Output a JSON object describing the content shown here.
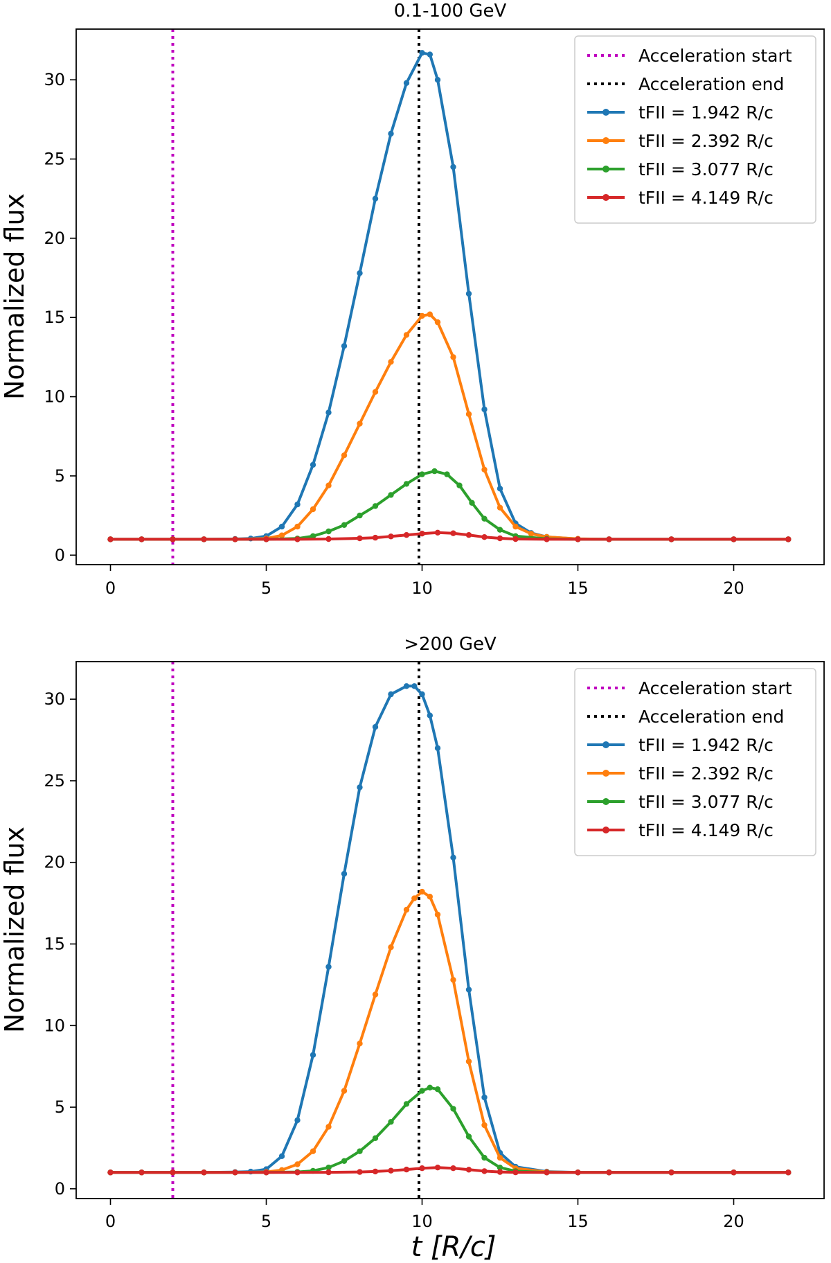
{
  "figure": {
    "shared_xlabel": "t [R/c]"
  },
  "chart_data": [
    {
      "type": "line",
      "title": "0.1-100 GeV",
      "xlabel": "t [R/c]",
      "ylabel": "Normalized flux",
      "xlim": [
        -1.1,
        22.9
      ],
      "ylim": [
        -0.6,
        33.2
      ],
      "xticks": [
        0,
        5,
        10,
        15,
        20
      ],
      "yticks": [
        0,
        5,
        10,
        15,
        20,
        25,
        30
      ],
      "grid": false,
      "legend_position": "top-right",
      "vlines": [
        {
          "name": "Acceleration start",
          "x": 2.0,
          "color": "#bf00bf",
          "style": "dotted"
        },
        {
          "name": "Acceleration end",
          "x": 9.9,
          "color": "#000000",
          "style": "dotted"
        }
      ],
      "series": [
        {
          "name": "tFII = 1.942 R/c",
          "color": "#1f77b4",
          "x": [
            0,
            1,
            2,
            3,
            4,
            4.5,
            5,
            5.5,
            6,
            6.5,
            7,
            7.5,
            8,
            8.5,
            9,
            9.5,
            10,
            10.25,
            10.5,
            11,
            11.5,
            12,
            12.5,
            13,
            13.5,
            14,
            15,
            16,
            18,
            20,
            21.75
          ],
          "values": [
            1,
            1,
            1,
            1,
            1.02,
            1.05,
            1.2,
            1.8,
            3.2,
            5.7,
            9.0,
            13.2,
            17.8,
            22.5,
            26.6,
            29.8,
            31.7,
            31.6,
            30.0,
            24.5,
            16.5,
            9.2,
            4.2,
            2.0,
            1.4,
            1.15,
            1.02,
            1,
            1,
            1,
            1
          ]
        },
        {
          "name": "tFII = 2.392 R/c",
          "color": "#ff7f0e",
          "x": [
            0,
            1,
            2,
            3,
            4,
            5,
            5.5,
            6,
            6.5,
            7,
            7.5,
            8,
            8.5,
            9,
            9.5,
            10,
            10.25,
            10.5,
            11,
            11.5,
            12,
            12.5,
            13,
            13.5,
            14,
            15,
            16,
            18,
            20,
            21.75
          ],
          "values": [
            1,
            1,
            1,
            1,
            1,
            1.05,
            1.25,
            1.8,
            2.9,
            4.4,
            6.3,
            8.3,
            10.3,
            12.2,
            13.9,
            15.1,
            15.2,
            14.7,
            12.5,
            8.9,
            5.4,
            3.0,
            1.8,
            1.35,
            1.15,
            1.03,
            1,
            1,
            1,
            1
          ]
        },
        {
          "name": "tFII = 3.077 R/c",
          "color": "#2ca02c",
          "x": [
            0,
            1,
            2,
            3,
            4,
            5,
            6,
            6.5,
            7,
            7.5,
            8,
            8.5,
            9,
            9.5,
            10,
            10.4,
            10.8,
            11.2,
            11.6,
            12,
            12.5,
            13,
            14,
            15,
            16,
            18,
            20,
            21.75
          ],
          "values": [
            1,
            1,
            1,
            1,
            1,
            1,
            1.05,
            1.2,
            1.5,
            1.9,
            2.5,
            3.1,
            3.8,
            4.5,
            5.1,
            5.3,
            5.1,
            4.4,
            3.3,
            2.3,
            1.6,
            1.2,
            1.03,
            1,
            1,
            1,
            1,
            1
          ]
        },
        {
          "name": "tFII = 4.149 R/c",
          "color": "#d62728",
          "x": [
            0,
            1,
            2,
            3,
            4,
            5,
            6,
            7,
            8,
            8.5,
            9,
            9.5,
            10,
            10.5,
            11,
            11.5,
            12,
            12.5,
            13,
            14,
            15,
            16,
            18,
            20,
            21.75
          ],
          "values": [
            1,
            1,
            1,
            1,
            1,
            1,
            1,
            1.02,
            1.06,
            1.1,
            1.18,
            1.27,
            1.36,
            1.42,
            1.38,
            1.27,
            1.14,
            1.06,
            1.02,
            1,
            1,
            1,
            1,
            1,
            1
          ]
        }
      ]
    },
    {
      "type": "line",
      "title": ">200 GeV",
      "xlabel": "t [R/c]",
      "ylabel": "Normalized flux",
      "xlim": [
        -1.1,
        22.9
      ],
      "ylim": [
        -0.6,
        32.3
      ],
      "xticks": [
        0,
        5,
        10,
        15,
        20
      ],
      "yticks": [
        0,
        5,
        10,
        15,
        20,
        25,
        30
      ],
      "grid": false,
      "legend_position": "top-right",
      "vlines": [
        {
          "name": "Acceleration start",
          "x": 2.0,
          "color": "#bf00bf",
          "style": "dotted"
        },
        {
          "name": "Acceleration end",
          "x": 9.9,
          "color": "#000000",
          "style": "dotted"
        }
      ],
      "series": [
        {
          "name": "tFII = 1.942 R/c",
          "color": "#1f77b4",
          "x": [
            0,
            1,
            2,
            3,
            4,
            4.5,
            5,
            5.5,
            6,
            6.5,
            7,
            7.5,
            8,
            8.5,
            9,
            9.5,
            9.75,
            10,
            10.25,
            10.5,
            11,
            11.5,
            12,
            12.5,
            13,
            14,
            15,
            16,
            18,
            20,
            21.75
          ],
          "values": [
            1,
            1,
            1,
            1,
            1.02,
            1.05,
            1.2,
            2.0,
            4.2,
            8.2,
            13.6,
            19.3,
            24.6,
            28.3,
            30.3,
            30.8,
            30.8,
            30.3,
            29.0,
            27.0,
            20.3,
            12.2,
            5.6,
            2.2,
            1.35,
            1.05,
            1,
            1,
            1,
            1,
            1
          ]
        },
        {
          "name": "tFII = 2.392 R/c",
          "color": "#ff7f0e",
          "x": [
            0,
            1,
            2,
            3,
            4,
            5,
            5.5,
            6,
            6.5,
            7,
            7.5,
            8,
            8.5,
            9,
            9.5,
            9.75,
            10,
            10.25,
            10.5,
            11,
            11.5,
            12,
            12.5,
            13,
            14,
            15,
            16,
            18,
            20,
            21.75
          ],
          "values": [
            1,
            1,
            1,
            1,
            1,
            1.03,
            1.15,
            1.5,
            2.3,
            3.8,
            6.0,
            8.9,
            11.9,
            14.8,
            17.1,
            17.8,
            18.2,
            17.9,
            16.8,
            12.8,
            7.8,
            3.9,
            1.9,
            1.25,
            1.03,
            1,
            1,
            1,
            1,
            1
          ]
        },
        {
          "name": "tFII = 3.077 R/c",
          "color": "#2ca02c",
          "x": [
            0,
            1,
            2,
            3,
            4,
            5,
            6,
            6.5,
            7,
            7.5,
            8,
            8.5,
            9,
            9.5,
            10,
            10.25,
            10.5,
            11,
            11.5,
            12,
            12.5,
            13,
            14,
            15,
            16,
            18,
            20,
            21.75
          ],
          "values": [
            1,
            1,
            1,
            1,
            1,
            1,
            1.03,
            1.1,
            1.3,
            1.7,
            2.3,
            3.1,
            4.1,
            5.2,
            6.0,
            6.2,
            6.1,
            4.9,
            3.2,
            1.9,
            1.3,
            1.08,
            1,
            1,
            1,
            1,
            1,
            1
          ]
        },
        {
          "name": "tFII = 4.149 R/c",
          "color": "#d62728",
          "x": [
            0,
            1,
            2,
            3,
            4,
            5,
            6,
            7,
            8,
            8.5,
            9,
            9.5,
            10,
            10.5,
            11,
            11.5,
            12,
            12.5,
            13,
            14,
            15,
            16,
            18,
            20,
            21.75
          ],
          "values": [
            1,
            1,
            1,
            1,
            1,
            1,
            1,
            1.01,
            1.03,
            1.06,
            1.11,
            1.18,
            1.26,
            1.3,
            1.26,
            1.17,
            1.08,
            1.03,
            1.01,
            1,
            1,
            1,
            1,
            1,
            1
          ]
        }
      ]
    }
  ]
}
